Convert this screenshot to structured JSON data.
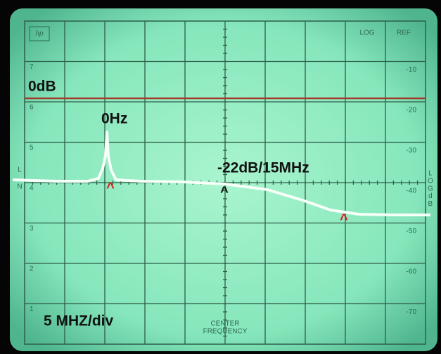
{
  "screen": {
    "logo": "hp",
    "header": {
      "log": "LOG",
      "ref": "REF"
    },
    "ref_levels": [
      "-10",
      "-20",
      "-30",
      "-40",
      "-50",
      "-60",
      "-70"
    ],
    "divisions": [
      "7",
      "6",
      "5",
      "4",
      "3",
      "2",
      "1"
    ],
    "side_left": [
      "L",
      "N"
    ],
    "side_right": [
      "LOG",
      "dB"
    ],
    "annotations": {
      "reference": "0dB",
      "peak": "0Hz",
      "marker": "-22dB/15MHz",
      "scale": "5 MHZ/div"
    },
    "markers": [
      "^",
      "^",
      "^"
    ],
    "center": [
      "CENTER",
      "FREQUENCY"
    ]
  }
}
